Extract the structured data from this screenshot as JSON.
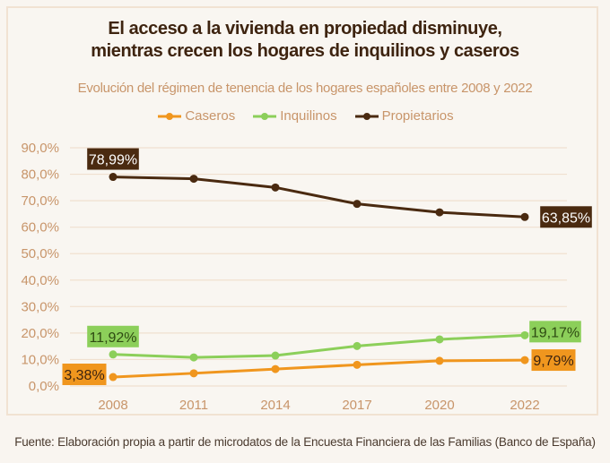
{
  "title_line1": "El acceso a la vivienda en propiedad disminuye,",
  "title_line2": "mientras crecen los hogares de inquilinos y caseros",
  "subtitle": "Evolución del régimen de tenencia de los hogares españoles entre 2008 y 2022",
  "source": "Fuente: Elaboración propia a partir de microdatos de la Encuesta Financiera de las Familias (Banco de España)",
  "chart_data": {
    "type": "line",
    "categories": [
      "2008",
      "2011",
      "2014",
      "2017",
      "2020",
      "2022"
    ],
    "ylim": [
      0,
      90
    ],
    "yticks": [
      "0,0%",
      "10,0%",
      "20,0%",
      "30,0%",
      "40,0%",
      "50,0%",
      "60,0%",
      "70,0%",
      "80,0%",
      "90,0%"
    ],
    "grid": true,
    "legend_position": "top",
    "series": [
      {
        "name": "Caseros",
        "color": "#f0961e",
        "values": [
          3.38,
          4.8,
          6.4,
          8.0,
          9.5,
          9.79
        ],
        "labels": {
          "first": "3,38%",
          "last": "9,79%"
        },
        "label_text_color": "#3e2410"
      },
      {
        "name": "Inquilinos",
        "color": "#8ccf5a",
        "values": [
          11.92,
          10.8,
          11.5,
          15.1,
          17.6,
          19.17
        ],
        "labels": {
          "first": "11,92%",
          "last": "19,17%"
        },
        "label_text_color": "#2e4a12"
      },
      {
        "name": "Propietarios",
        "color": "#4a2a10",
        "values": [
          78.99,
          78.3,
          75.0,
          68.8,
          65.6,
          63.85
        ],
        "labels": {
          "first": "78,99%",
          "last": "63,85%"
        },
        "label_text_color": "#ffffff"
      }
    ]
  }
}
